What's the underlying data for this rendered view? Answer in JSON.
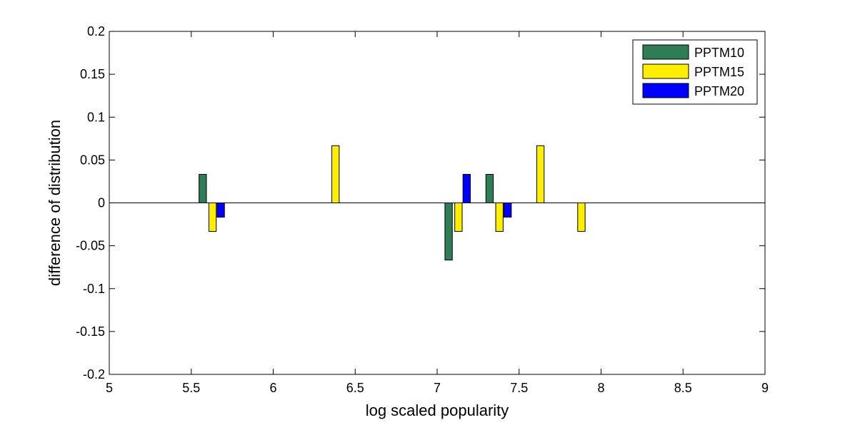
{
  "chart_data": {
    "type": "bar",
    "title": "",
    "xlabel": "log scaled popularity",
    "ylabel": "difference of distribution",
    "xlim": [
      5,
      9
    ],
    "ylim": [
      -0.2,
      0.2
    ],
    "xticks": [
      5,
      5.5,
      6,
      6.5,
      7,
      7.5,
      8,
      8.5,
      9
    ],
    "xtick_labels": [
      "5",
      "5.5",
      "6",
      "6.5",
      "7",
      "7.5",
      "8",
      "8.5",
      "9"
    ],
    "yticks": [
      -0.2,
      -0.15,
      -0.1,
      -0.05,
      0,
      0.05,
      0.1,
      0.15,
      0.2
    ],
    "ytick_labels": [
      "-0.2",
      "-0.15",
      "-0.1",
      "-0.05",
      "0",
      "0.05",
      "0.1",
      "0.15",
      "0.2"
    ],
    "grid": false,
    "legend_position": "top-right",
    "bar_width": 0.045,
    "series": [
      {
        "name": "PPTM10",
        "color": "#2e7d55",
        "points": [
          {
            "x": 5.57,
            "y": 0.0333
          },
          {
            "x": 7.07,
            "y": -0.0667
          },
          {
            "x": 7.32,
            "y": 0.0333
          }
        ]
      },
      {
        "name": "PPTM15",
        "color": "#ffee00",
        "points": [
          {
            "x": 5.63,
            "y": -0.0333
          },
          {
            "x": 6.38,
            "y": 0.0667
          },
          {
            "x": 7.13,
            "y": -0.0333
          },
          {
            "x": 7.38,
            "y": -0.0333
          },
          {
            "x": 7.63,
            "y": 0.0667
          },
          {
            "x": 7.88,
            "y": -0.0333
          }
        ]
      },
      {
        "name": "PPTM20",
        "color": "#0000ff",
        "points": [
          {
            "x": 5.68,
            "y": -0.0167
          },
          {
            "x": 7.18,
            "y": 0.0333
          },
          {
            "x": 7.43,
            "y": -0.0167
          }
        ]
      }
    ]
  }
}
